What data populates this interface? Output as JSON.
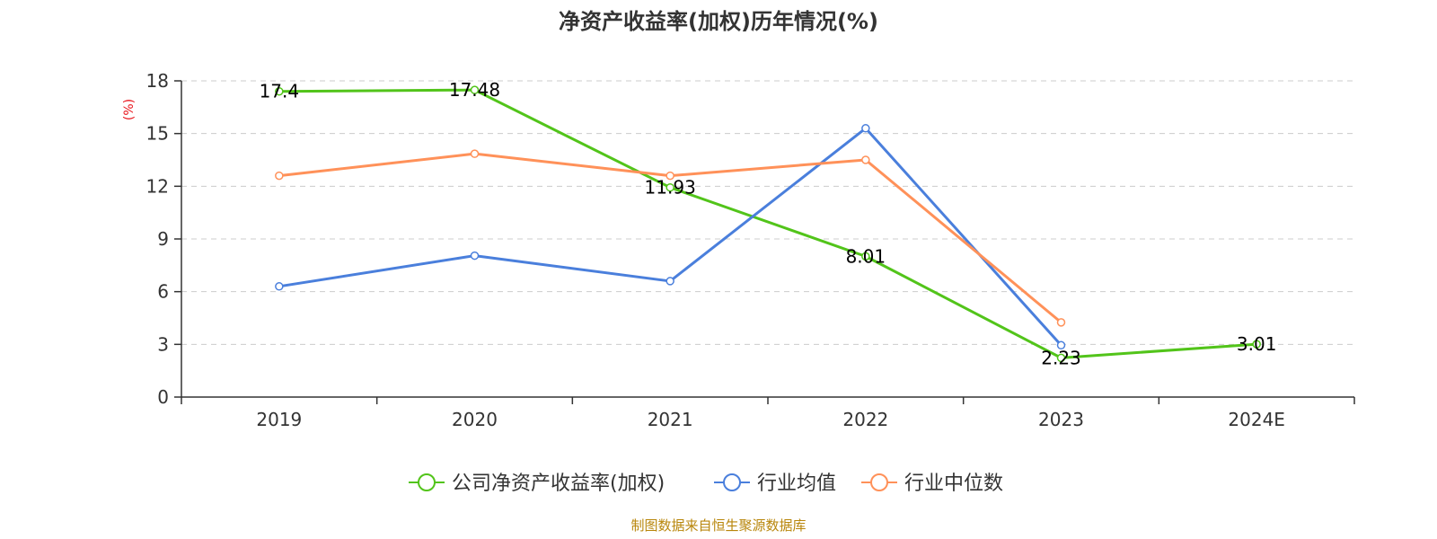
{
  "chart_data": {
    "type": "line",
    "title": "净资产收益率(加权)历年情况(%)",
    "xlabel": "",
    "ylabel": "(%)",
    "ylim": [
      0,
      18
    ],
    "yticks": [
      0,
      3,
      6,
      9,
      12,
      15,
      18
    ],
    "categories": [
      "2019",
      "2020",
      "2021",
      "2022",
      "2023",
      "2024E"
    ],
    "grid": true,
    "legend_position": "bottom-center",
    "series": [
      {
        "name": "公司净资产收益率(加权)",
        "color": "#52c41a",
        "values": [
          17.4,
          17.48,
          11.93,
          8.01,
          2.23,
          3.01
        ],
        "labels": [
          "17.4",
          "17.48",
          "11.93",
          "8.01",
          "2.23",
          "3.01"
        ],
        "show_labels": true
      },
      {
        "name": "行业均值",
        "color": "#4a7fdc",
        "values": [
          6.3,
          8.05,
          6.6,
          15.3,
          2.95,
          null
        ],
        "show_labels": false
      },
      {
        "name": "行业中位数",
        "color": "#ff9159",
        "values": [
          12.6,
          13.85,
          12.6,
          13.5,
          4.25,
          null
        ],
        "show_labels": false
      }
    ],
    "source": "制图数据来自恒生聚源数据库"
  }
}
